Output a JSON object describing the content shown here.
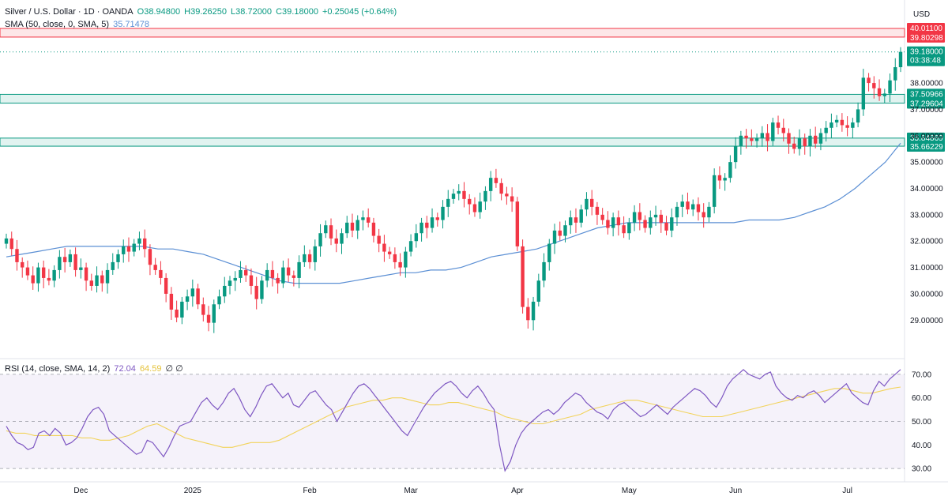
{
  "header": {
    "title": "Silver / U.S. Dollar · 1D · OANDA",
    "open": "O38.94800",
    "high": "H39.26250",
    "low": "L38.72000",
    "close": "C39.18000",
    "change": "+0.25045 (+0.64%)",
    "sma_label": "SMA (50, close, 0, SMA, 5)",
    "sma_value": "35.71478",
    "currency": "USD"
  },
  "rsi_legend": {
    "label": "RSI (14, close, SMA, 14, 2)",
    "rsi_value": "72.04",
    "sma_value": "64.59",
    "extra": "∅ ∅"
  },
  "colors": {
    "up": "#089981",
    "down": "#f23645",
    "sma": "#5b8fd4",
    "rsi": "#7e57c2",
    "rsi_sma": "#f2d35b",
    "res_zone": "#f23645",
    "sup_zone": "#089981"
  },
  "chart_data": {
    "type": "candlestick",
    "price_axis": {
      "ylim": [
        27.6,
        41.0
      ],
      "ticks": [
        "29.00000",
        "30.00000",
        "31.00000",
        "32.00000",
        "33.00000",
        "34.00000",
        "35.00000",
        "36.00000",
        "37.00000",
        "38.00000"
      ],
      "tick_values": [
        29,
        30,
        31,
        32,
        33,
        34,
        35,
        36,
        37,
        38
      ]
    },
    "x_labels": [
      {
        "label": "Dec",
        "bar": 14
      },
      {
        "label": "2025",
        "bar": 35
      },
      {
        "label": "Feb",
        "bar": 57
      },
      {
        "label": "Mar",
        "bar": 76
      },
      {
        "label": "Apr",
        "bar": 96
      },
      {
        "label": "May",
        "bar": 117
      },
      {
        "label": "Jun",
        "bar": 137
      },
      {
        "label": "Jul",
        "bar": 158
      }
    ],
    "zones": [
      {
        "kind": "resistance",
        "from": 39.80298,
        "to": 40.011,
        "labels": [
          "40.01100",
          "39.80298"
        ]
      },
      {
        "kind": "support",
        "from": 37.29604,
        "to": 37.50966,
        "labels": [
          "37.50966",
          "37.29604"
        ]
      },
      {
        "kind": "support",
        "from": 35.66229,
        "to": 35.84869,
        "labels": [
          "35.84869",
          "35.66229"
        ]
      }
    ],
    "last_price": {
      "value": 39.18,
      "label": "39.18000",
      "countdown": "03:38:48"
    },
    "closes": [
      32.1,
      31.7,
      31.2,
      31.0,
      30.7,
      30.4,
      31.0,
      30.6,
      30.5,
      30.9,
      31.4,
      31.2,
      31.5,
      30.9,
      31.0,
      30.5,
      30.3,
      30.7,
      30.4,
      30.9,
      31.2,
      31.5,
      31.8,
      31.6,
      31.9,
      32.1,
      31.7,
      31.1,
      30.9,
      30.6,
      30.0,
      29.4,
      29.1,
      29.7,
      29.9,
      30.2,
      29.6,
      29.2,
      28.9,
      29.6,
      29.9,
      30.3,
      30.5,
      30.6,
      30.9,
      30.7,
      30.3,
      29.8,
      30.5,
      30.9,
      30.6,
      30.4,
      31.0,
      30.7,
      30.6,
      31.2,
      31.5,
      31.2,
      31.8,
      32.3,
      32.6,
      32.1,
      31.9,
      32.3,
      32.7,
      32.4,
      32.8,
      32.9,
      32.7,
      32.2,
      31.9,
      31.6,
      31.5,
      31.2,
      31.0,
      31.6,
      32.0,
      32.3,
      32.7,
      32.5,
      32.9,
      32.8,
      33.3,
      33.6,
      33.8,
      33.9,
      33.6,
      33.4,
      33.1,
      33.5,
      33.9,
      34.4,
      34.2,
      33.8,
      33.7,
      33.5,
      31.8,
      29.5,
      29.0,
      29.7,
      30.5,
      31.2,
      31.9,
      32.4,
      32.2,
      32.6,
      32.9,
      32.7,
      33.2,
      33.6,
      33.3,
      33.0,
      32.8,
      32.5,
      32.9,
      32.6,
      32.3,
      32.7,
      33.1,
      32.8,
      32.5,
      32.9,
      33.0,
      32.7,
      32.4,
      32.9,
      33.3,
      33.5,
      33.2,
      33.4,
      33.1,
      32.9,
      33.3,
      34.5,
      34.3,
      34.4,
      35.0,
      35.6,
      36.0,
      35.9,
      35.8,
      35.9,
      36.1,
      35.8,
      36.5,
      36.3,
      36.1,
      35.7,
      35.5,
      35.9,
      35.6,
      36.0,
      35.7,
      36.1,
      36.3,
      36.5,
      36.6,
      36.4,
      36.3,
      36.5,
      37.0,
      38.2,
      38.0,
      37.8,
      37.5,
      37.6,
      38.1,
      38.6,
      39.18
    ],
    "sma": [
      31.4,
      31.5,
      31.6,
      31.7,
      31.8,
      31.8,
      31.8,
      31.8,
      31.8,
      31.8,
      31.7,
      31.7,
      31.6,
      31.5,
      31.3,
      31.1,
      30.9,
      30.7,
      30.5,
      30.4,
      30.4,
      30.4,
      30.4,
      30.5,
      30.6,
      30.7,
      30.8,
      30.8,
      30.9,
      30.9,
      31.0,
      31.2,
      31.4,
      31.5,
      31.6,
      31.7,
      31.9,
      32.1,
      32.3,
      32.5,
      32.6,
      32.7,
      32.7,
      32.7,
      32.7,
      32.7,
      32.7,
      32.7,
      32.7,
      32.8,
      32.8,
      32.8,
      32.9,
      33.1,
      33.3,
      33.6,
      34.0,
      34.5,
      35.0,
      35.71478
    ],
    "rsi": [
      48,
      44,
      41,
      40,
      38,
      39,
      45,
      46,
      44,
      47,
      45,
      40,
      41,
      43,
      47,
      52,
      55,
      56,
      53,
      46,
      44,
      42,
      40,
      38,
      36,
      37,
      42,
      41,
      38,
      35,
      39,
      44,
      48,
      49,
      50,
      54,
      58,
      60,
      57,
      55,
      58,
      62,
      64,
      60,
      55,
      52,
      56,
      61,
      65,
      66,
      63,
      60,
      62,
      57,
      56,
      59,
      62,
      63,
      60,
      57,
      55,
      50,
      54,
      58,
      62,
      65,
      66,
      64,
      61,
      58,
      55,
      52,
      49,
      46,
      44,
      48,
      52,
      56,
      59,
      62,
      64,
      66,
      67,
      65,
      62,
      60,
      63,
      65,
      62,
      58,
      55,
      40,
      29,
      33,
      40,
      45,
      48,
      50,
      52,
      54,
      55,
      53,
      55,
      58,
      60,
      62,
      61,
      58,
      56,
      54,
      53,
      51,
      55,
      57,
      58,
      56,
      54,
      52,
      53,
      55,
      57,
      55,
      53,
      56,
      58,
      60,
      62,
      64,
      63,
      61,
      58,
      56,
      60,
      65,
      68,
      70,
      72,
      70,
      69,
      68,
      70,
      71,
      65,
      62,
      60,
      59,
      61,
      60,
      62,
      63,
      61,
      58,
      60,
      62,
      64,
      66,
      62,
      60,
      58,
      57,
      63,
      67,
      65,
      68,
      70,
      72.04
    ],
    "rsi_sma": [
      46,
      45,
      45,
      44,
      44,
      44,
      44,
      44,
      43,
      43,
      42,
      42,
      43,
      44,
      46,
      48,
      49,
      47,
      45,
      43,
      42,
      41,
      40,
      39,
      39,
      40,
      41,
      41,
      41,
      42,
      44,
      46,
      48,
      50,
      52,
      54,
      56,
      57,
      58,
      59,
      59,
      60,
      60,
      59,
      58,
      57,
      57,
      58,
      58,
      57,
      56,
      55,
      54,
      52,
      51,
      50,
      49,
      49,
      50,
      51,
      52,
      53,
      55,
      56,
      57,
      58,
      59,
      59,
      58,
      57,
      56,
      55,
      54,
      53,
      52,
      52,
      52,
      53,
      54,
      55,
      56,
      57,
      58,
      59,
      60,
      61,
      62,
      63,
      64,
      64,
      63,
      62,
      62,
      63,
      64,
      64.59
    ],
    "rsi_axis": {
      "ylim": [
        25,
        76
      ],
      "ticks": [
        "30.00",
        "40.00",
        "50.00",
        "60.00",
        "70.00"
      ],
      "tick_values": [
        30,
        40,
        50,
        60,
        70
      ],
      "band": [
        30,
        70
      ]
    }
  }
}
